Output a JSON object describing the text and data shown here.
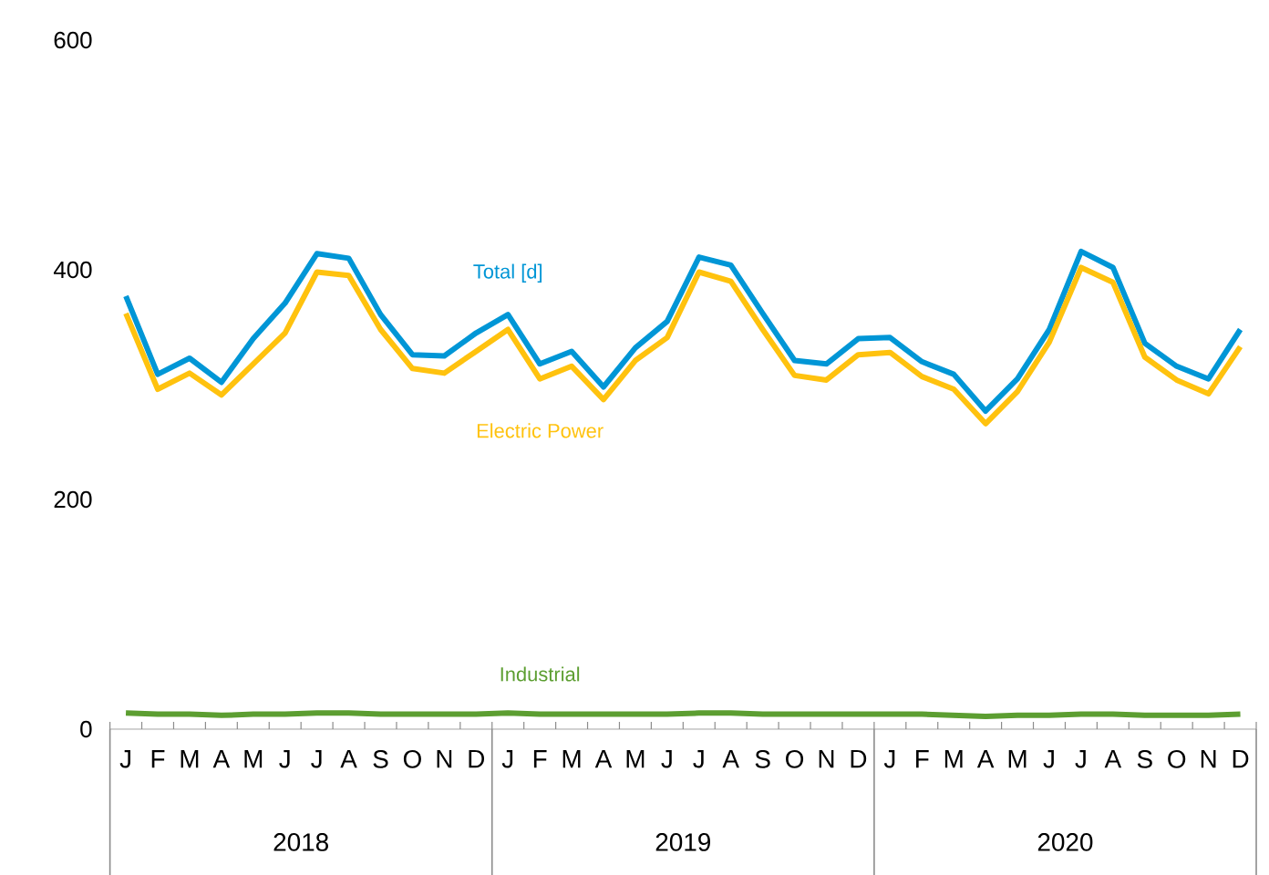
{
  "chart_data": {
    "type": "line",
    "categories": [
      "J",
      "F",
      "M",
      "A",
      "M",
      "J",
      "J",
      "A",
      "S",
      "O",
      "N",
      "D",
      "J",
      "F",
      "M",
      "A",
      "M",
      "J",
      "J",
      "A",
      "S",
      "O",
      "N",
      "D",
      "J",
      "F",
      "M",
      "A",
      "M",
      "J",
      "J",
      "A",
      "S",
      "O",
      "N",
      "D"
    ],
    "series": [
      {
        "name": "Total [d]",
        "color": "#0096d6",
        "values": [
          377,
          309,
          323,
          302,
          340,
          371,
          414,
          410,
          361,
          326,
          325,
          345,
          361,
          318,
          329,
          298,
          332,
          355,
          411,
          404,
          362,
          321,
          318,
          340,
          341,
          320,
          309,
          277,
          305,
          348,
          416,
          402,
          336,
          316,
          305,
          348
        ]
      },
      {
        "name": "Electric Power",
        "color": "#ffc20e",
        "values": [
          362,
          296,
          310,
          291,
          318,
          345,
          398,
          395,
          348,
          314,
          310,
          329,
          348,
          305,
          316,
          287,
          321,
          341,
          398,
          390,
          348,
          308,
          304,
          326,
          328,
          307,
          296,
          266,
          294,
          337,
          402,
          389,
          324,
          304,
          292,
          333
        ]
      },
      {
        "name": "Industrial",
        "color": "#5c9e31",
        "values": [
          14,
          13,
          13,
          12,
          13,
          13,
          14,
          14,
          13,
          13,
          13,
          13,
          14,
          13,
          13,
          13,
          13,
          13,
          14,
          14,
          13,
          13,
          13,
          13,
          13,
          13,
          12,
          11,
          12,
          12,
          13,
          13,
          12,
          12,
          12,
          13
        ]
      }
    ],
    "ylim": [
      0,
      600
    ],
    "yticks": [
      0,
      200,
      400,
      600
    ],
    "annotations": [
      "2018",
      "2019",
      "2020"
    ]
  }
}
